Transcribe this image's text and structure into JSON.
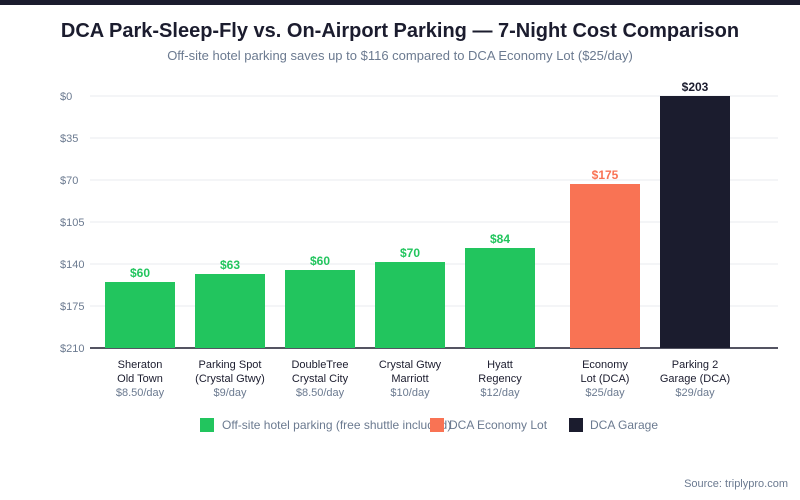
{
  "chart_data": {
    "type": "bar",
    "title": "DCA Park-Sleep-Fly vs. On-Airport Parking — 7-Night Cost Comparison",
    "subtitle": "Off-site hotel parking saves up to $116 compared to DCA Economy Lot ($25/day)",
    "categories": [
      [
        "Sheraton",
        "Old Town"
      ],
      [
        "Parking Spot",
        "(Crystal Gtwy)"
      ],
      [
        "DoubleTree",
        "Crystal City"
      ],
      [
        "Crystal Gtwy",
        "Marriott"
      ],
      [
        "Hyatt",
        "Regency"
      ],
      [
        "Economy",
        "Lot (DCA)"
      ],
      [
        "Parking 2",
        "Garage (DCA)"
      ]
    ],
    "rates": [
      "$8.50/day",
      "$9/day",
      "$8.50/day",
      "$10/day",
      "$12/day",
      "$25/day",
      "$29/day"
    ],
    "values": [
      60,
      63,
      60,
      70,
      84,
      175,
      203
    ],
    "value_labels": [
      "$60",
      "$63",
      "$60",
      "$70",
      "$84",
      "$175",
      "$203"
    ],
    "groups": [
      0,
      0,
      0,
      0,
      0,
      1,
      2
    ],
    "y_ticks": [
      "$0",
      "$35",
      "$70",
      "$105",
      "$140",
      "$175",
      "$210"
    ],
    "ylim": [
      0,
      210
    ],
    "y_inverted": true,
    "grid": true,
    "legend_position": "bottom",
    "legend": [
      {
        "name": "Off-site hotel parking (free shuttle included)",
        "color": "#22c55e"
      },
      {
        "name": "DCA Economy Lot",
        "color": "#f97354"
      },
      {
        "name": "DCA Garage",
        "color": "#1b1c2e"
      }
    ],
    "source": "Source: triplypro.com"
  }
}
